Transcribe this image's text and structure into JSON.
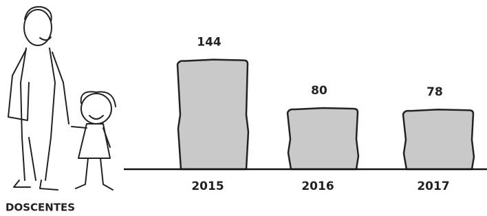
{
  "chart_data": {
    "type": "bar",
    "caption": "DOSCENTES",
    "categories": [
      "2015",
      "2016",
      "2017"
    ],
    "values": [
      144,
      80,
      78
    ],
    "color": "#c9c9c9"
  }
}
